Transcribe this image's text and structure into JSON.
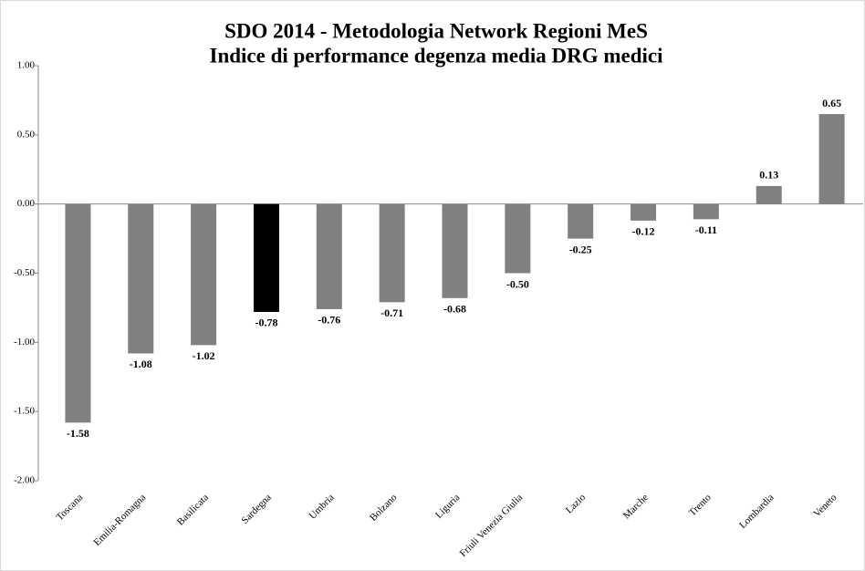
{
  "chart_data": {
    "type": "bar",
    "title": [
      "SDO 2014 - Metodologia Network Regioni MeS",
      "Indice di performance degenza media DRG medici"
    ],
    "categories": [
      "Toscana",
      "Emilia-Romagna",
      "Basilicata",
      "Sardegna",
      "Umbria",
      "Bolzano",
      "Liguria",
      "Friuli Venezia Giulia",
      "Lazio",
      "Marche",
      "Trento",
      "Lombardia",
      "Veneto"
    ],
    "values": [
      -1.58,
      -1.08,
      -1.02,
      -0.78,
      -0.76,
      -0.71,
      -0.68,
      -0.5,
      -0.25,
      -0.12,
      -0.11,
      0.13,
      0.65
    ],
    "value_labels": [
      "-1.58",
      "-1.08",
      "-1.02",
      "-0.78",
      "-0.76",
      "-0.71",
      "-0.68",
      "-0.50",
      "-0.25",
      "-0.12",
      "-0.11",
      "0.13",
      "0.65"
    ],
    "colors": [
      "#808080",
      "#808080",
      "#808080",
      "#000000",
      "#808080",
      "#808080",
      "#808080",
      "#808080",
      "#808080",
      "#808080",
      "#808080",
      "#808080",
      "#808080"
    ],
    "ylim": [
      -2,
      1
    ],
    "yticks": [
      {
        "value": 1,
        "label": "1.00"
      },
      {
        "value": 0.5,
        "label": "0.50"
      },
      {
        "value": 0,
        "label": "0.00"
      },
      {
        "value": -0.5,
        "label": "-0.50"
      },
      {
        "value": -1,
        "label": "-1.00"
      },
      {
        "value": -1.5,
        "label": "-1.50"
      },
      {
        "value": -2,
        "label": "-2.00"
      }
    ]
  }
}
